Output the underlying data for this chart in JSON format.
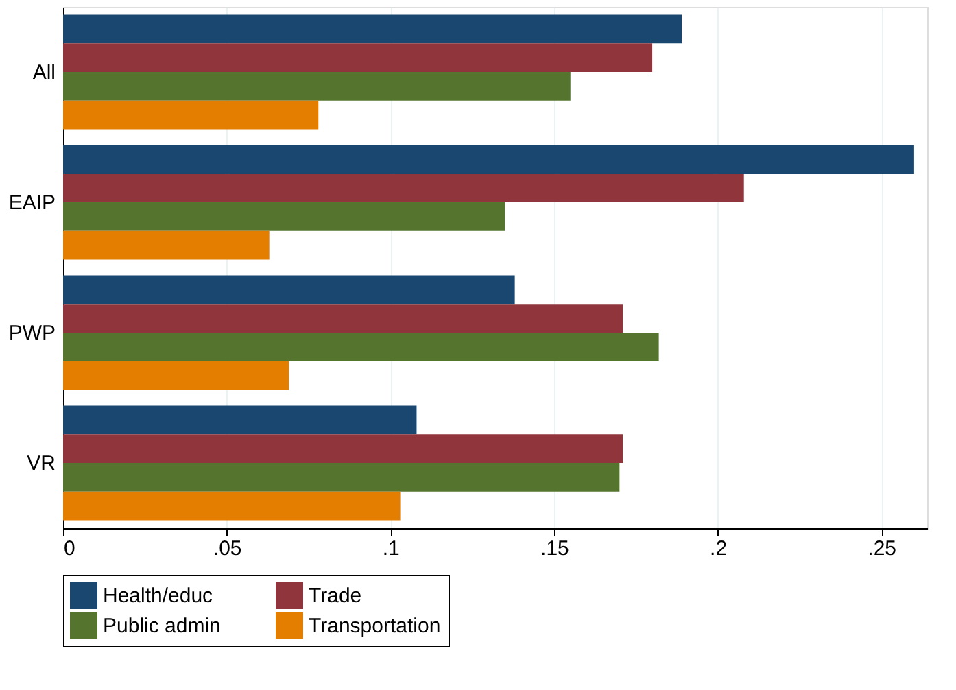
{
  "chart_data": {
    "type": "bar",
    "orientation": "horizontal",
    "categories": [
      "All",
      "EAIP",
      "PWP",
      "VR"
    ],
    "series": [
      {
        "name": "Health/educ",
        "color": "#1a476f",
        "values": [
          0.189,
          0.26,
          0.138,
          0.108
        ]
      },
      {
        "name": "Trade",
        "color": "#90353b",
        "values": [
          0.18,
          0.208,
          0.171,
          0.171
        ]
      },
      {
        "name": "Public admin",
        "color": "#55752f",
        "values": [
          0.155,
          0.135,
          0.182,
          0.17
        ]
      },
      {
        "name": "Transportation",
        "color": "#e37e00",
        "values": [
          0.078,
          0.063,
          0.069,
          0.103
        ]
      }
    ],
    "xlim": [
      0,
      0.264
    ],
    "xticks": [
      {
        "value": 0,
        "label": "0"
      },
      {
        "value": 0.05,
        "label": ".05"
      },
      {
        "value": 0.1,
        "label": ".1"
      },
      {
        "value": 0.15,
        "label": ".15"
      },
      {
        "value": 0.2,
        "label": ".2"
      },
      {
        "value": 0.25,
        "label": ".25"
      }
    ],
    "grid": "x",
    "legend": "bottom"
  }
}
